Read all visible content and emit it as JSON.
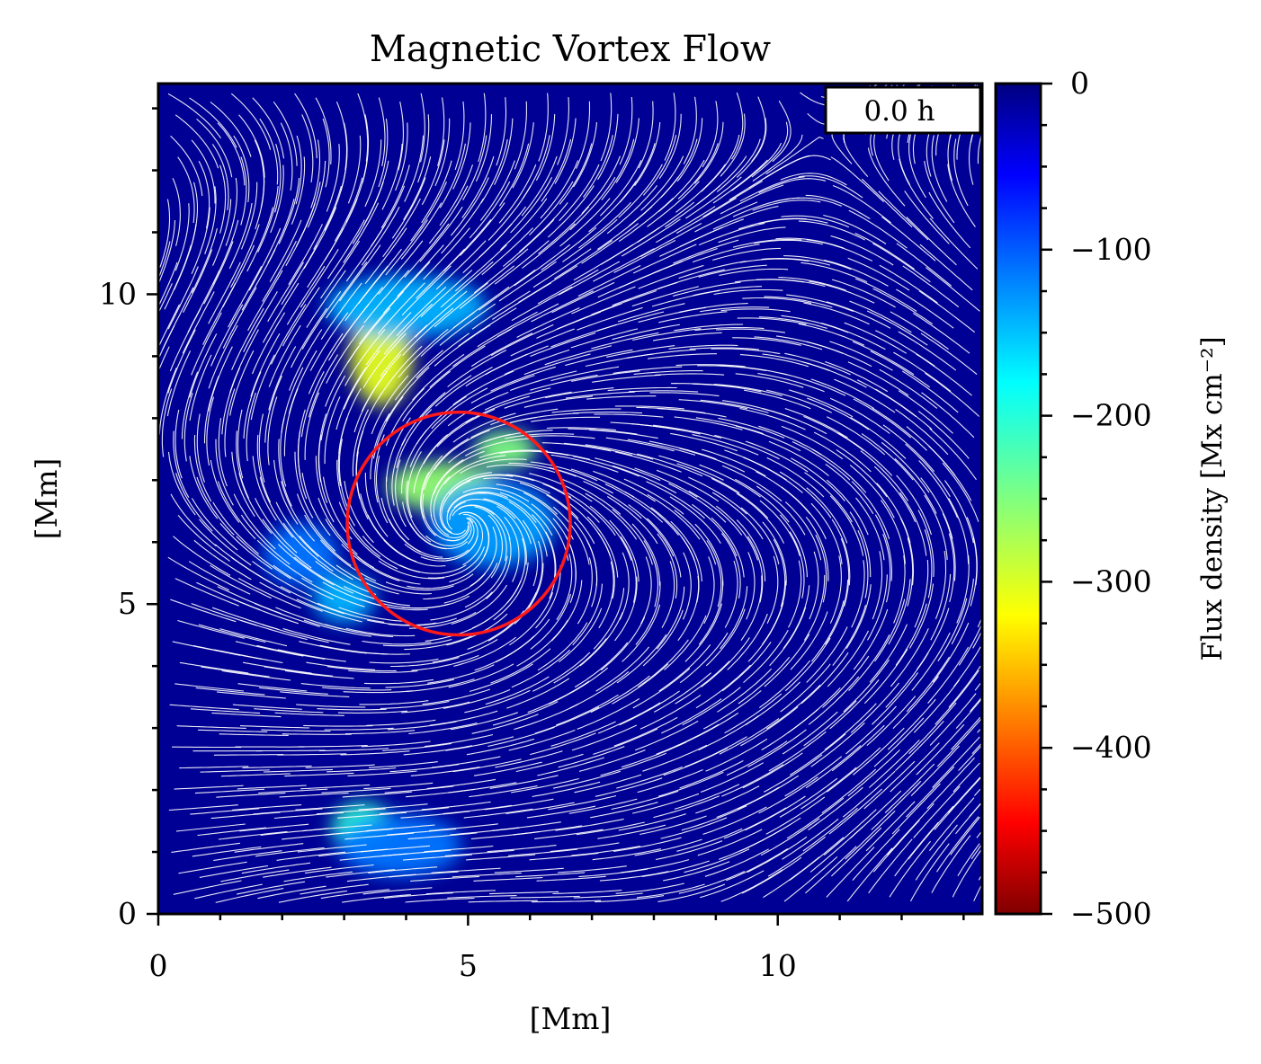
{
  "chart_data": {
    "type": "heatmap",
    "title": "Magnetic Vortex Flow",
    "xlabel": "[Mm]",
    "ylabel": "[Mm]",
    "xlim": [
      0,
      13.3
    ],
    "ylim": [
      0,
      13.4
    ],
    "x_ticks": [
      0,
      5,
      10
    ],
    "x_tick_labels": [
      "0",
      "5",
      "10"
    ],
    "y_ticks": [
      0,
      5,
      10
    ],
    "y_tick_labels": [
      "0",
      "5",
      "10"
    ],
    "time_label": "0.0 h",
    "colorbar": {
      "label": "Flux density [Mx cm⁻²]",
      "colormap": "jet",
      "range": [
        -500,
        0
      ],
      "ticks": [
        0,
        -100,
        -200,
        -300,
        -400,
        -500
      ],
      "tick_labels": [
        "0",
        "−100",
        "−200",
        "−300",
        "−400",
        "−500"
      ]
    },
    "flux_patches": [
      {
        "x": 3.6,
        "y": 9.0,
        "value": -300,
        "rx": 0.5,
        "ry": 0.8
      },
      {
        "x": 4.0,
        "y": 9.8,
        "value": -150,
        "rx": 1.3,
        "ry": 0.5
      },
      {
        "x": 4.6,
        "y": 6.9,
        "value": -260,
        "rx": 0.9,
        "ry": 0.4
      },
      {
        "x": 5.6,
        "y": 7.5,
        "value": -250,
        "rx": 0.5,
        "ry": 0.3
      },
      {
        "x": 5.4,
        "y": 6.3,
        "value": -140,
        "rx": 1.0,
        "ry": 0.7
      },
      {
        "x": 3.0,
        "y": 5.1,
        "value": -150,
        "rx": 0.5,
        "ry": 0.4
      },
      {
        "x": 2.3,
        "y": 5.8,
        "value": -120,
        "rx": 0.6,
        "ry": 0.5
      },
      {
        "x": 3.3,
        "y": 1.4,
        "value": -210,
        "rx": 0.5,
        "ry": 0.4
      },
      {
        "x": 3.9,
        "y": 1.1,
        "value": -120,
        "rx": 1.0,
        "ry": 0.5
      }
    ],
    "vortex": {
      "center_x": 4.85,
      "center_y": 6.3,
      "radius": 1.8,
      "color": "#ff1a1a"
    },
    "background_value": -10,
    "streamline_color": "#ffffff"
  }
}
